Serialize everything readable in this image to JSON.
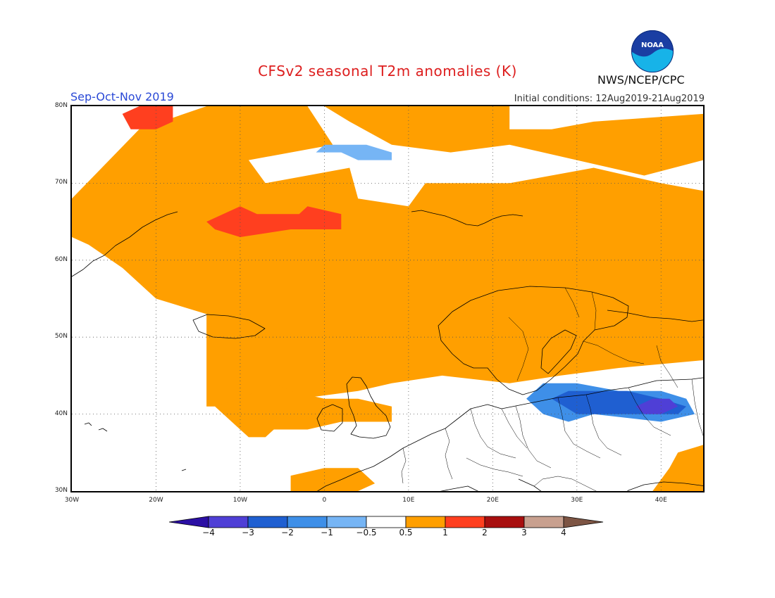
{
  "header": {
    "title": "CFSv2 seasonal T2m anomalies (K)",
    "title_color": "#dd1e1e",
    "season": "Sep-Oct-Nov 2019",
    "season_color": "#2a49d6",
    "initial_conditions": "Initial conditions: 12Aug2019-21Aug2019",
    "agency": "NWS/NCEP/CPC",
    "logo_text": "NOAA"
  },
  "map": {
    "projection": "lat-lon",
    "lon_range": [
      -30,
      45
    ],
    "lat_range": [
      30,
      80
    ],
    "grid": true,
    "lat_labels": [
      {
        "value": 80,
        "text": "80N"
      },
      {
        "value": 70,
        "text": "70N"
      },
      {
        "value": 60,
        "text": "60N"
      },
      {
        "value": 50,
        "text": "50N"
      },
      {
        "value": 40,
        "text": "40N"
      },
      {
        "value": 30,
        "text": "30N"
      }
    ],
    "lon_labels": [
      {
        "value": -30,
        "text": "30W"
      },
      {
        "value": -20,
        "text": "20W"
      },
      {
        "value": -10,
        "text": "10W"
      },
      {
        "value": 0,
        "text": "0"
      },
      {
        "value": 10,
        "text": "10E"
      },
      {
        "value": 20,
        "text": "20E"
      },
      {
        "value": 30,
        "text": "30E"
      },
      {
        "value": 40,
        "text": "40E"
      }
    ],
    "anomaly_regions": [
      {
        "name": "north-atlantic-warm",
        "category": "0.5-1",
        "color": "#ff9f00",
        "outline": [
          [
            -30,
            68
          ],
          [
            -22,
            77
          ],
          [
            -14,
            80
          ],
          [
            -2,
            80
          ],
          [
            1,
            75
          ],
          [
            -9,
            73
          ],
          [
            -7,
            70
          ],
          [
            3,
            72
          ],
          [
            4,
            68
          ],
          [
            10,
            67
          ],
          [
            12,
            70
          ],
          [
            22,
            70
          ],
          [
            32,
            72
          ],
          [
            40,
            70
          ],
          [
            45,
            69
          ],
          [
            45,
            47
          ],
          [
            35,
            46
          ],
          [
            28,
            45
          ],
          [
            22,
            44
          ],
          [
            14,
            45
          ],
          [
            8,
            44
          ],
          [
            4,
            43
          ],
          [
            -3,
            42
          ],
          [
            -8,
            41
          ],
          [
            -14,
            41
          ],
          [
            -14,
            46
          ],
          [
            -14,
            53
          ],
          [
            -20,
            55
          ],
          [
            -24,
            59
          ],
          [
            -28,
            62
          ],
          [
            -30,
            63
          ]
        ]
      },
      {
        "name": "iberia-warm",
        "category": "0.5-1",
        "color": "#ff9f00",
        "outline": [
          [
            -13,
            41
          ],
          [
            -10,
            42
          ],
          [
            -6,
            44
          ],
          [
            -4,
            43
          ],
          [
            0,
            42
          ],
          [
            4,
            42
          ],
          [
            8,
            41
          ],
          [
            8,
            39
          ],
          [
            2,
            39
          ],
          [
            -2,
            38
          ],
          [
            -4,
            38
          ],
          [
            -6,
            38
          ],
          [
            -7,
            37
          ],
          [
            -9,
            37
          ],
          [
            -10,
            38
          ]
        ]
      },
      {
        "name": "east-arctic-warm",
        "category": "0.5-1",
        "color": "#ff9f00",
        "outline": [
          [
            0,
            80
          ],
          [
            22,
            80
          ],
          [
            22,
            77
          ],
          [
            27,
            77
          ],
          [
            32,
            78
          ],
          [
            45,
            79
          ],
          [
            45,
            73
          ],
          [
            38,
            71
          ],
          [
            30,
            73
          ],
          [
            22,
            75
          ],
          [
            15,
            74
          ],
          [
            8,
            75
          ],
          [
            3,
            78
          ]
        ]
      },
      {
        "name": "caucasus-warm",
        "category": "0.5-1",
        "color": "#ff9f00",
        "outline": [
          [
            39,
            30
          ],
          [
            41,
            33
          ],
          [
            42,
            35
          ],
          [
            45,
            36
          ],
          [
            45,
            30
          ]
        ]
      },
      {
        "name": "north-africa-warm",
        "category": "0.5-1",
        "color": "#ff9f00",
        "outline": [
          [
            -4,
            30
          ],
          [
            -4,
            32
          ],
          [
            0,
            33
          ],
          [
            4,
            33
          ],
          [
            6,
            31
          ],
          [
            4,
            30
          ]
        ]
      },
      {
        "name": "iceland-strong-warm",
        "category": "1-2",
        "color": "#ff3f1f",
        "outline": [
          [
            -14,
            65
          ],
          [
            -10,
            67
          ],
          [
            -8,
            66
          ],
          [
            -3,
            66
          ],
          [
            -2,
            67
          ],
          [
            2,
            66
          ],
          [
            2,
            64
          ],
          [
            -4,
            64
          ],
          [
            -10,
            63
          ],
          [
            -13,
            64
          ]
        ]
      },
      {
        "name": "greenland-strong-warm",
        "category": "1-2",
        "color": "#ff3f1f",
        "outline": [
          [
            -24,
            79
          ],
          [
            -22,
            80
          ],
          [
            -18,
            80
          ],
          [
            -18,
            78
          ],
          [
            -20,
            77
          ],
          [
            -23,
            77
          ]
        ]
      },
      {
        "name": "black-sea-cool",
        "category": "-2--1",
        "color": "#3e8fe8",
        "outline": [
          [
            24,
            42
          ],
          [
            26,
            40
          ],
          [
            29,
            39
          ],
          [
            32,
            40
          ],
          [
            40,
            39
          ],
          [
            44,
            40
          ],
          [
            43,
            42
          ],
          [
            40,
            43
          ],
          [
            35,
            43
          ],
          [
            30,
            44
          ],
          [
            26,
            44
          ]
        ]
      },
      {
        "name": "anatolia-cold",
        "category": "-3--2",
        "color": "#1f5fd1",
        "outline": [
          [
            27,
            42
          ],
          [
            29,
            43
          ],
          [
            33,
            43
          ],
          [
            36,
            43
          ],
          [
            40,
            42
          ],
          [
            43,
            41
          ],
          [
            42,
            40
          ],
          [
            39,
            40
          ],
          [
            34,
            40
          ],
          [
            30,
            40
          ]
        ]
      },
      {
        "name": "east-anatolia-very-cold",
        "category": "-4--3",
        "color": "#4f3fd6",
        "outline": [
          [
            37,
            41
          ],
          [
            39,
            42
          ],
          [
            41,
            42
          ],
          [
            42,
            41
          ],
          [
            40,
            40
          ],
          [
            38,
            40
          ]
        ]
      },
      {
        "name": "svalbard-sea-cool",
        "category": "-1--0.5",
        "color": "#76b5f5",
        "outline": [
          [
            -1,
            74
          ],
          [
            2,
            74
          ],
          [
            4,
            73
          ],
          [
            8,
            73
          ],
          [
            8,
            74
          ],
          [
            5,
            75
          ],
          [
            0,
            75
          ]
        ]
      }
    ]
  },
  "colorbar": {
    "labels": [
      "−4",
      "−3",
      "−2",
      "−1",
      "−0.5",
      "0.5",
      "1",
      "2",
      "3",
      "4"
    ],
    "colors": [
      "#2b0fa4",
      "#4f3fd6",
      "#1f5fd1",
      "#3e8fe8",
      "#76b5f5",
      "#ffffff",
      "#ff9f00",
      "#ff3f1f",
      "#a80f0f",
      "#c8a08f",
      "#7d5544"
    ]
  }
}
